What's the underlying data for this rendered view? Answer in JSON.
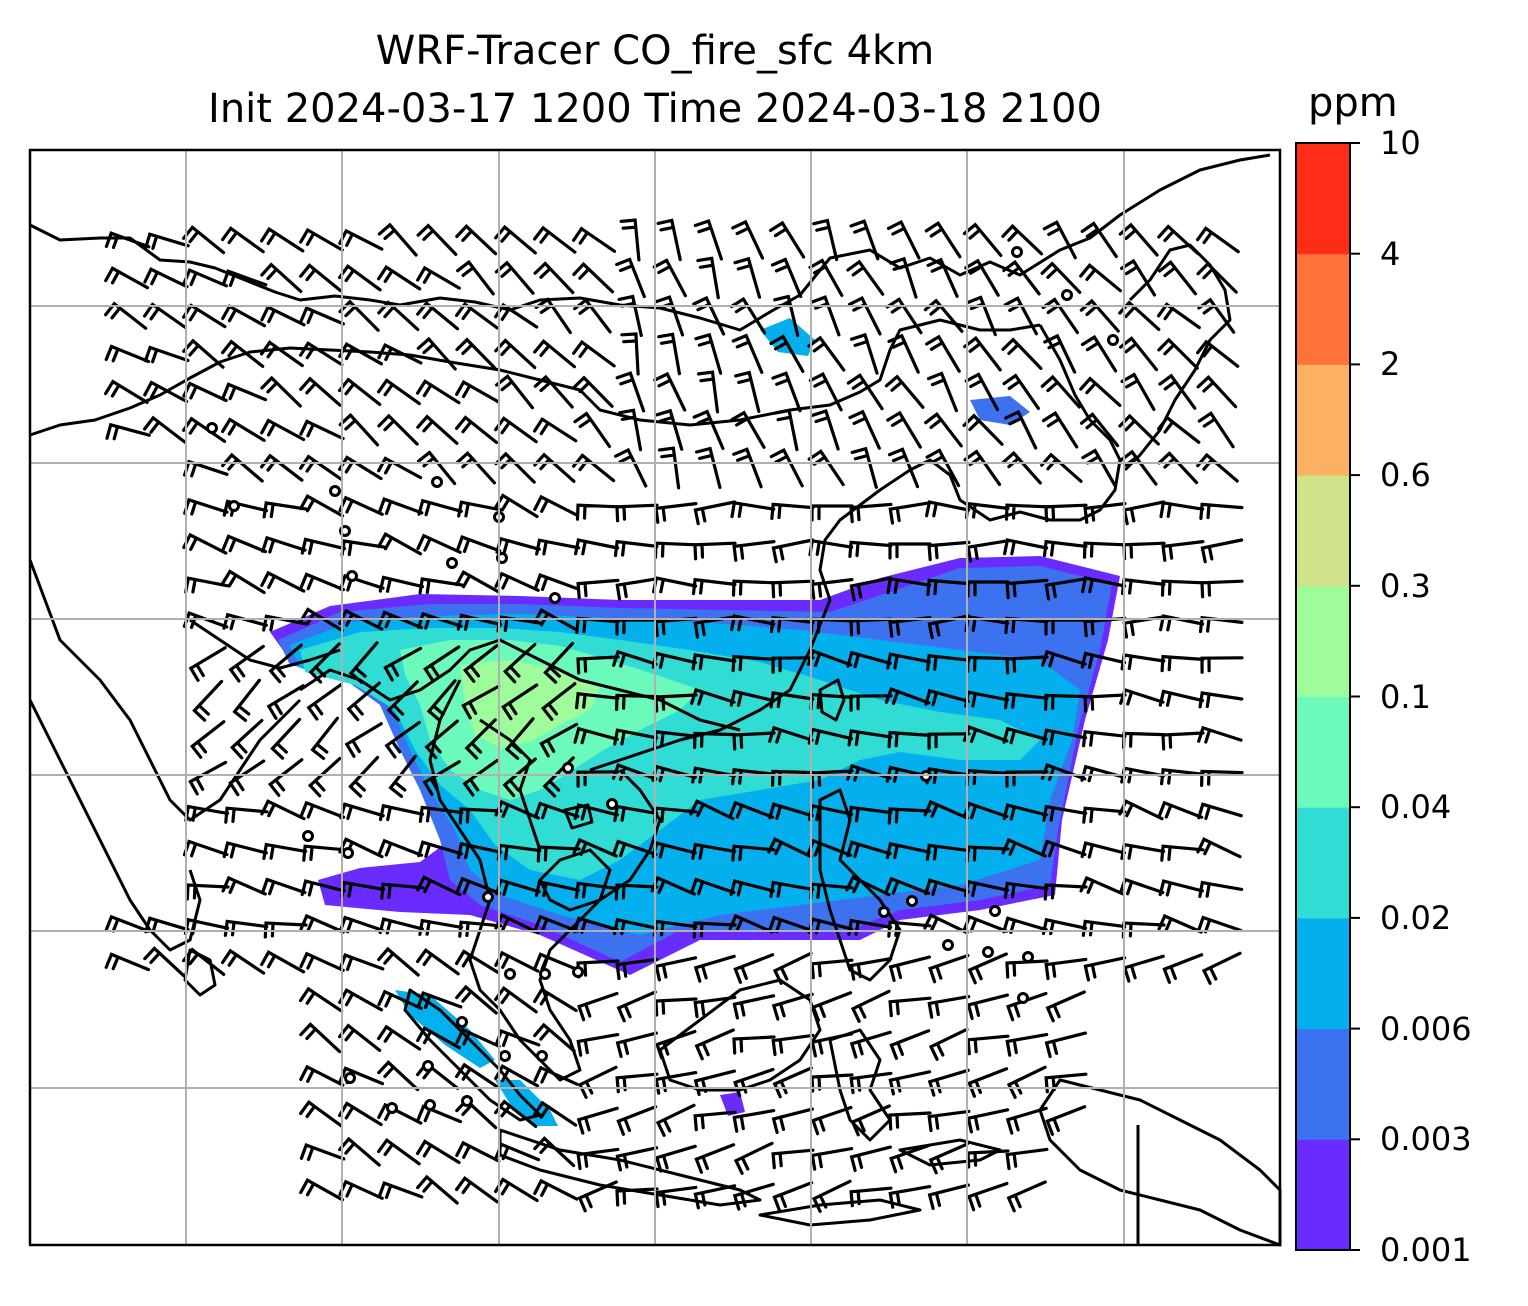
{
  "title": {
    "line1": "WRF-Tracer CO_fire_sfc 4km",
    "line2": "Init 2024-03-17 1200 Time 2024-03-18 2100"
  },
  "colorbar": {
    "unit": "ppm",
    "levels": [
      "0.001",
      "0.003",
      "0.006",
      "0.02",
      "0.04",
      "0.1",
      "0.3",
      "0.6",
      "2",
      "4",
      "10"
    ],
    "colors": [
      "#6a2bff",
      "#3c72f0",
      "#03b0ed",
      "#30dcd4",
      "#6cfabc",
      "#9efc9a",
      "#d0e28a",
      "#fbb062",
      "#ff7239",
      "#ff2d17"
    ]
  },
  "map": {
    "field": "CO_fire_sfc",
    "overlays": [
      "coastlines",
      "country-borders",
      "lat-lon-gridlines",
      "wind-barbs"
    ],
    "land_color": "#ffffff",
    "coastline_color": "#000000",
    "gridline_color": "#b0b0b0"
  }
}
